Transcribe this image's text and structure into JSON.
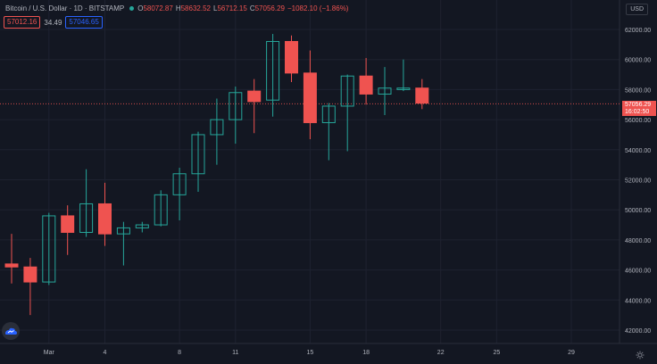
{
  "header": {
    "symbol_title": "Bitcoin / U.S. Dollar · 1D · BITSTAMP",
    "o_key": "O",
    "o_val": "58072.87",
    "h_key": "H",
    "h_val": "58632.52",
    "l_key": "L",
    "l_val": "56712.15",
    "c_key": "C",
    "c_val": "57056.29",
    "change": "−1082.10 (−1.86%)"
  },
  "quote": {
    "sell": "57012.16",
    "spread": "34.49",
    "buy": "57046.65"
  },
  "currency_label": "USD",
  "last_price": {
    "value": "57056.29",
    "countdown": "16:02:50"
  },
  "colors": {
    "up": "#26a69a",
    "down": "#ef5350",
    "background": "#131722",
    "grid": "#1e2230"
  },
  "icons": {
    "logo": "tradingview-cloud-icon",
    "settings": "gear-icon"
  },
  "chart_data": {
    "type": "candlestick",
    "ylim": [
      41000,
      63500
    ],
    "y_ticks": [
      "42000.00",
      "44000.00",
      "46000.00",
      "48000.00",
      "50000.00",
      "52000.00",
      "54000.00",
      "56000.00",
      "58000.00",
      "60000.00",
      "62000.00"
    ],
    "x_ticks": [
      "Mar",
      "4",
      "8",
      "11",
      "15",
      "18",
      "22",
      "25",
      "29"
    ],
    "candles": [
      {
        "o": 46400,
        "h": 48400,
        "l": 45100,
        "c": 46200
      },
      {
        "o": 46200,
        "h": 46800,
        "l": 43000,
        "c": 45200
      },
      {
        "o": 45200,
        "h": 49800,
        "l": 45000,
        "c": 49600
      },
      {
        "o": 49600,
        "h": 50300,
        "l": 47000,
        "c": 48500
      },
      {
        "o": 48500,
        "h": 52700,
        "l": 48200,
        "c": 50400
      },
      {
        "o": 50400,
        "h": 51800,
        "l": 47600,
        "c": 48400
      },
      {
        "o": 48400,
        "h": 49200,
        "l": 46300,
        "c": 48800
      },
      {
        "o": 48800,
        "h": 49200,
        "l": 48500,
        "c": 49000
      },
      {
        "o": 49000,
        "h": 51300,
        "l": 48900,
        "c": 51000
      },
      {
        "o": 51000,
        "h": 52800,
        "l": 49300,
        "c": 52400
      },
      {
        "o": 52400,
        "h": 55200,
        "l": 51200,
        "c": 55000
      },
      {
        "o": 55000,
        "h": 57400,
        "l": 53000,
        "c": 56000
      },
      {
        "o": 56000,
        "h": 58200,
        "l": 54400,
        "c": 57800
      },
      {
        "o": 57900,
        "h": 58700,
        "l": 55100,
        "c": 57200
      },
      {
        "o": 57300,
        "h": 61700,
        "l": 56200,
        "c": 61200
      },
      {
        "o": 61200,
        "h": 61600,
        "l": 58500,
        "c": 59100
      },
      {
        "o": 59100,
        "h": 60600,
        "l": 54700,
        "c": 55800
      },
      {
        "o": 55800,
        "h": 57100,
        "l": 53300,
        "c": 56900
      },
      {
        "o": 56900,
        "h": 59000,
        "l": 53900,
        "c": 58900
      },
      {
        "o": 58900,
        "h": 60100,
        "l": 57000,
        "c": 57700
      },
      {
        "o": 57700,
        "h": 59500,
        "l": 56300,
        "c": 58100
      },
      {
        "o": 58000,
        "h": 60000,
        "l": 57900,
        "c": 58100
      },
      {
        "o": 58100,
        "h": 58700,
        "l": 56700,
        "c": 57100
      }
    ]
  }
}
